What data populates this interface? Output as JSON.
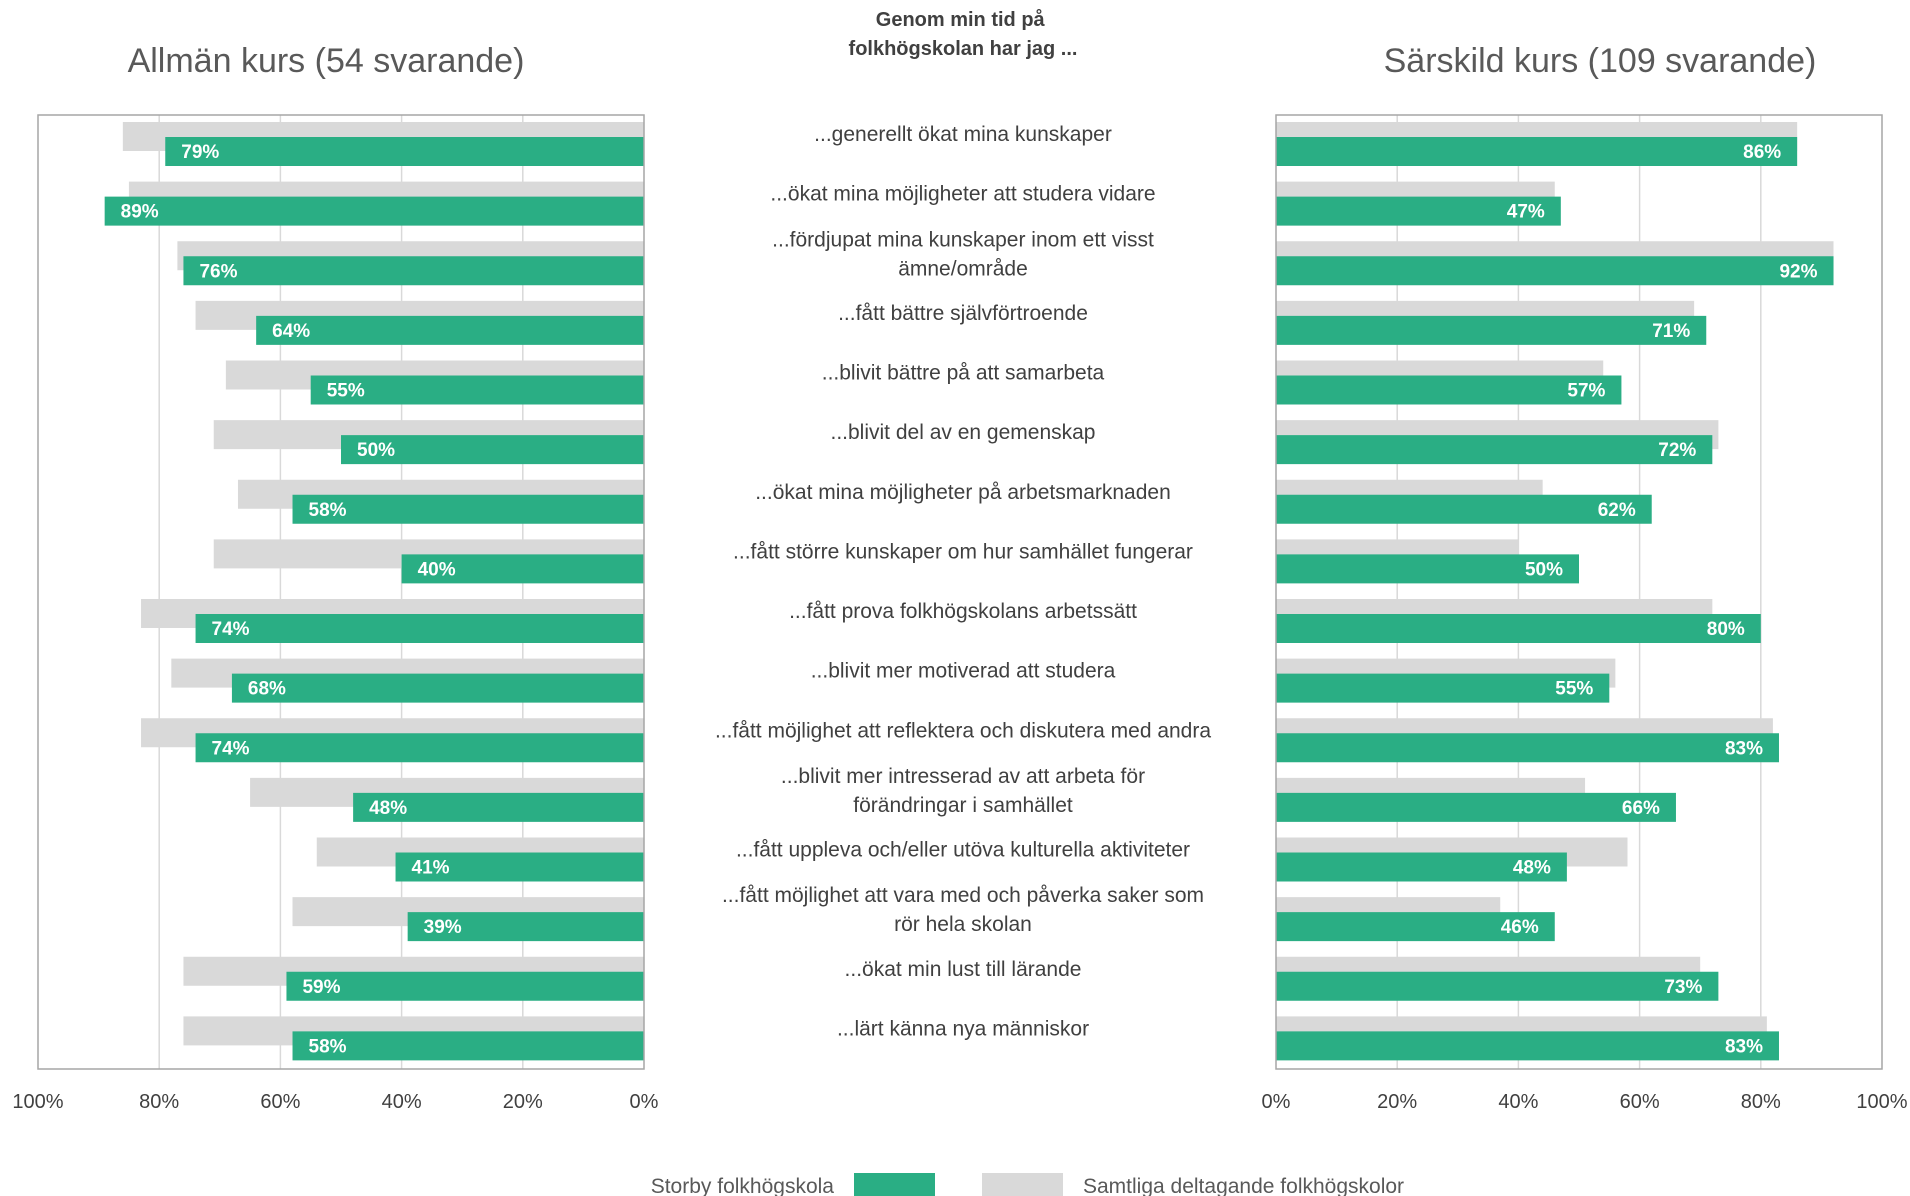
{
  "center_title_lines": [
    "Genom min tid på",
    "folkhögskolan har jag ..."
  ],
  "categories": [
    [
      "...generellt ökat mina kunskaper"
    ],
    [
      "...ökat mina möjligheter att studera vidare"
    ],
    [
      "...fördjupat mina kunskaper inom ett visst",
      "ämne/område"
    ],
    [
      "...fått bättre självförtroende"
    ],
    [
      "...blivit bättre på att samarbeta"
    ],
    [
      "...blivit del av en gemenskap"
    ],
    [
      "...ökat mina möjligheter på arbetsmarknaden"
    ],
    [
      "...fått större kunskaper om hur samhället fungerar"
    ],
    [
      "...fått prova folkhögskolans arbetssätt"
    ],
    [
      "...blivit mer motiverad att studera"
    ],
    [
      "...fått möjlighet att reflektera och diskutera med andra"
    ],
    [
      "...blivit mer intresserad av att arbeta för",
      "förändringar i samhället"
    ],
    [
      "...fått uppleva och/eller utöva kulturella aktiviteter"
    ],
    [
      "...fått möjlighet att vara med och påverka saker som",
      "rör hela skolan"
    ],
    [
      "...ökat min lust till lärande"
    ],
    [
      "...lärt känna nya människor"
    ]
  ],
  "chart_data": [
    {
      "type": "bar",
      "orientation": "horizontal",
      "direction": "reversed",
      "title": "Allmän kurs (54 svarande)",
      "xlim": [
        0,
        100
      ],
      "ticks": [
        "0%",
        "20%",
        "40%",
        "60%",
        "80%",
        "100%"
      ],
      "grid": true,
      "series": [
        {
          "name": "Storby folkhögskola",
          "color": "#2AAE84",
          "values": [
            79,
            89,
            76,
            64,
            55,
            50,
            58,
            40,
            74,
            68,
            74,
            48,
            41,
            39,
            59,
            58
          ],
          "labels": [
            "79%",
            "89%",
            "76%",
            "64%",
            "55%",
            "50%",
            "58%",
            "40%",
            "74%",
            "68%",
            "74%",
            "48%",
            "41%",
            "39%",
            "59%",
            "58%"
          ]
        },
        {
          "name": "Samtliga deltagande folkhögskolor",
          "color": "#D9D9D9",
          "values": [
            86,
            85,
            77,
            74,
            69,
            71,
            67,
            71,
            83,
            78,
            83,
            65,
            54,
            58,
            76,
            76
          ]
        }
      ]
    },
    {
      "type": "bar",
      "orientation": "horizontal",
      "title": "Särskild kurs (109 svarande)",
      "xlim": [
        0,
        100
      ],
      "ticks": [
        "0%",
        "20%",
        "40%",
        "60%",
        "80%",
        "100%"
      ],
      "grid": true,
      "series": [
        {
          "name": "Storby folkhögskola",
          "color": "#2AAE84",
          "values": [
            86,
            47,
            92,
            71,
            57,
            72,
            62,
            50,
            80,
            55,
            83,
            66,
            48,
            46,
            73,
            83
          ],
          "labels": [
            "86%",
            "47%",
            "92%",
            "71%",
            "57%",
            "72%",
            "62%",
            "50%",
            "80%",
            "55%",
            "83%",
            "66%",
            "48%",
            "46%",
            "73%",
            "83%"
          ]
        },
        {
          "name": "Samtliga deltagande folkhögskolor",
          "color": "#D9D9D9",
          "values": [
            86,
            46,
            92,
            69,
            54,
            73,
            44,
            40,
            72,
            56,
            82,
            51,
            58,
            37,
            70,
            81
          ]
        }
      ]
    }
  ],
  "legend": [
    {
      "label": "Storby folkhögskola",
      "color": "#2AAE84"
    },
    {
      "label": "Samtliga deltagande folkhögskolor",
      "color": "#D9D9D9"
    }
  ]
}
